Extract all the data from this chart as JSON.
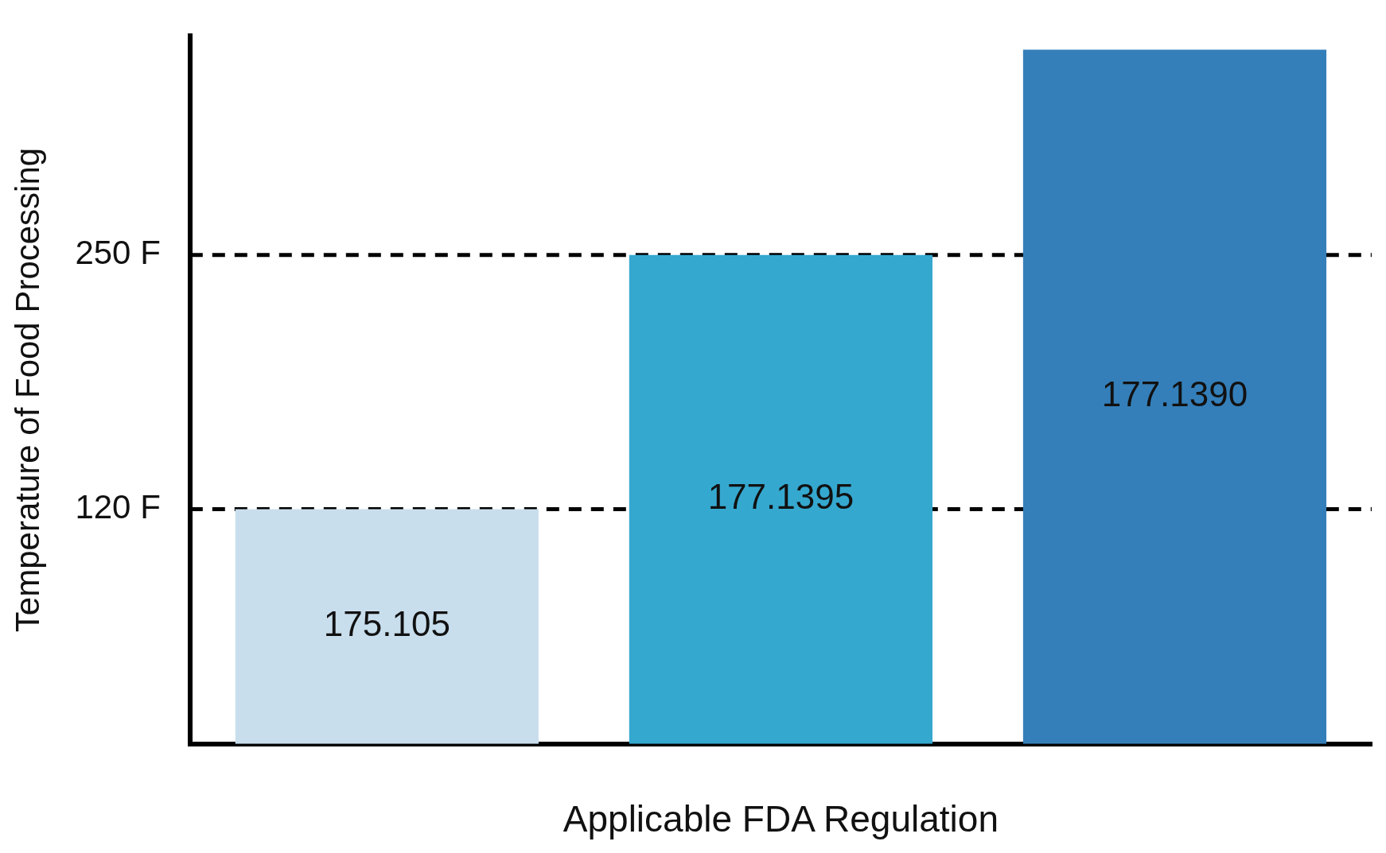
{
  "chart_data": {
    "type": "bar",
    "xlabel": "Applicable FDA Regulation",
    "ylabel": "Temperature of Food Processing",
    "categories": [
      "175.105",
      "177.1395",
      "177.1390"
    ],
    "values": [
      120,
      250,
      355
    ],
    "colors": [
      "#c9deed",
      "#35a8cf",
      "#347fb9"
    ],
    "ylim": [
      0,
      362
    ],
    "yticks": [
      {
        "value": 120,
        "label": "120 F"
      },
      {
        "value": 250,
        "label": "250 F"
      }
    ],
    "ref_lines": [
      {
        "axis": "y",
        "value": 120,
        "line_style": "dashed",
        "color": "#000000"
      },
      {
        "axis": "y",
        "value": 250,
        "line_style": "dashed",
        "color": "#000000"
      }
    ],
    "grid": false,
    "legend": false
  }
}
